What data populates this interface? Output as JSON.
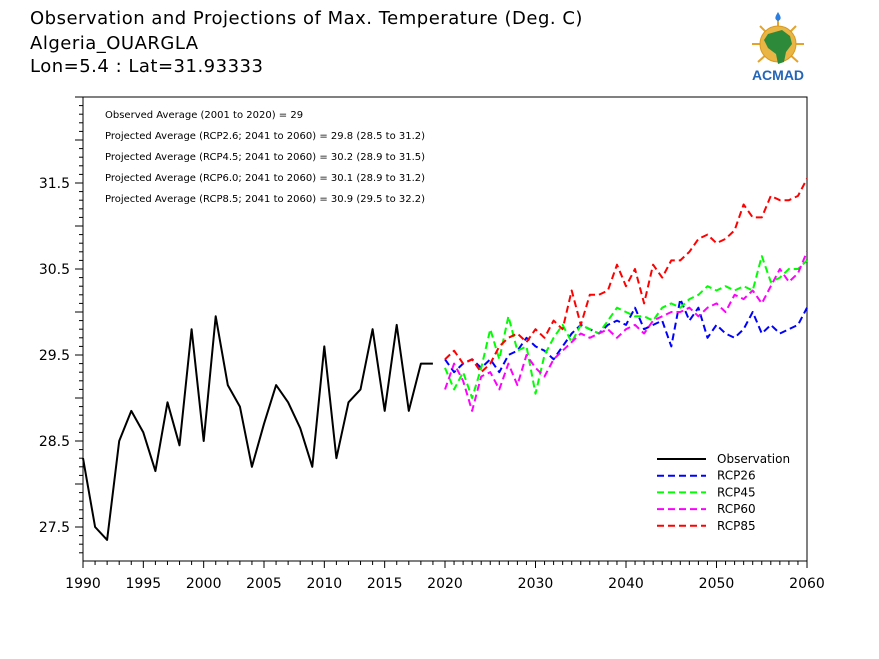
{
  "title": {
    "line1": "Observation and Projections of Max. Temperature (Deg. C)",
    "line2": "Algeria_OUARGLA",
    "line3": "Lon=5.4 : Lat=31.93333"
  },
  "logo": {
    "text": "ACMAD",
    "icon": "africa-map-logo"
  },
  "chart_data": {
    "type": "line",
    "title": "Observation and Projections of Max. Temperature (Deg. C)",
    "xlabel": "",
    "ylabel": "",
    "xlim": [
      1990,
      2060
    ],
    "ylim": [
      27.1,
      32.6
    ],
    "grid": false,
    "legend_position": "bottom-right",
    "x_ticks": [
      1990,
      1995,
      2000,
      2005,
      2010,
      2015,
      2020,
      2030,
      2040,
      2050,
      2060
    ],
    "y_ticks": [
      27.5,
      28.5,
      29.5,
      30.5,
      31.5
    ],
    "annotations": [
      "Observed Average (2001 to 2020) = 29",
      "Projected Average (RCP2.6; 2041 to 2060) = 29.8 (28.5 to 31.2)",
      "Projected Average (RCP4.5; 2041 to 2060) = 30.2 (28.9 to 31.5)",
      "Projected Average (RCP6.0; 2041 to 2060) = 30.1 (28.9 to 31.2)",
      "Projected Average (RCP8.5; 2041 to 2060) = 30.9 (29.5 to 32.2)"
    ],
    "series": [
      {
        "name": "Observation",
        "color": "#000000",
        "dash": "solid",
        "x": [
          1990,
          1991,
          1992,
          1993,
          1994,
          1995,
          1996,
          1997,
          1998,
          1999,
          2000,
          2001,
          2002,
          2003,
          2004,
          2005,
          2006,
          2007,
          2008,
          2009,
          2010,
          2011,
          2012,
          2013,
          2014,
          2015,
          2016,
          2017,
          2018,
          2019
        ],
        "values": [
          28.3,
          27.5,
          27.35,
          28.5,
          28.85,
          28.6,
          28.15,
          28.95,
          28.45,
          29.8,
          28.5,
          29.95,
          29.15,
          28.9,
          28.2,
          28.7,
          29.15,
          28.95,
          28.65,
          28.2,
          29.6,
          28.3,
          28.95,
          29.1,
          29.8,
          28.85,
          29.85,
          28.85,
          29.4,
          29.4
        ]
      },
      {
        "name": "RCP26",
        "color": "#0000ff",
        "dash": "dashed",
        "x": [
          2020,
          2021,
          2022,
          2023,
          2024,
          2025,
          2026,
          2027,
          2028,
          2029,
          2030,
          2031,
          2032,
          2033,
          2034,
          2035,
          2036,
          2037,
          2038,
          2039,
          2040,
          2041,
          2042,
          2043,
          2044,
          2045,
          2046,
          2047,
          2048,
          2049,
          2050,
          2051,
          2052,
          2053,
          2054,
          2055,
          2056,
          2057,
          2058,
          2059,
          2060
        ],
        "values": [
          29.45,
          29.3,
          29.4,
          29.45,
          29.35,
          29.45,
          29.3,
          29.5,
          29.55,
          29.7,
          29.6,
          29.55,
          29.45,
          29.6,
          29.75,
          29.85,
          29.8,
          29.75,
          29.85,
          29.9,
          29.85,
          30.05,
          29.8,
          29.85,
          29.9,
          29.6,
          30.15,
          29.9,
          30.05,
          29.7,
          29.85,
          29.75,
          29.7,
          29.8,
          30.0,
          29.75,
          29.85,
          29.75,
          29.8,
          29.85,
          30.05
        ]
      },
      {
        "name": "RCP45",
        "color": "#00ff00",
        "dash": "dashed",
        "x": [
          2020,
          2021,
          2022,
          2023,
          2024,
          2025,
          2026,
          2027,
          2028,
          2029,
          2030,
          2031,
          2032,
          2033,
          2034,
          2035,
          2036,
          2037,
          2038,
          2039,
          2040,
          2041,
          2042,
          2043,
          2044,
          2045,
          2046,
          2047,
          2048,
          2049,
          2050,
          2051,
          2052,
          2053,
          2054,
          2055,
          2056,
          2057,
          2058,
          2059,
          2060
        ],
        "values": [
          29.35,
          29.1,
          29.3,
          29.0,
          29.35,
          29.8,
          29.45,
          29.95,
          29.55,
          29.6,
          29.05,
          29.5,
          29.7,
          29.85,
          29.65,
          29.85,
          29.8,
          29.75,
          29.9,
          30.05,
          30.0,
          29.95,
          29.95,
          29.9,
          30.05,
          30.1,
          30.05,
          30.15,
          30.2,
          30.3,
          30.25,
          30.3,
          30.25,
          30.3,
          30.25,
          30.65,
          30.35,
          30.4,
          30.5,
          30.5,
          30.6
        ]
      },
      {
        "name": "RCP60",
        "color": "#ff00ff",
        "dash": "dashed",
        "x": [
          2020,
          2021,
          2022,
          2023,
          2024,
          2025,
          2026,
          2027,
          2028,
          2029,
          2030,
          2031,
          2032,
          2033,
          2034,
          2035,
          2036,
          2037,
          2038,
          2039,
          2040,
          2041,
          2042,
          2043,
          2044,
          2045,
          2046,
          2047,
          2048,
          2049,
          2050,
          2051,
          2052,
          2053,
          2054,
          2055,
          2056,
          2057,
          2058,
          2059,
          2060
        ],
        "values": [
          29.1,
          29.4,
          29.2,
          28.85,
          29.25,
          29.3,
          29.1,
          29.4,
          29.15,
          29.5,
          29.35,
          29.25,
          29.45,
          29.55,
          29.65,
          29.75,
          29.7,
          29.75,
          29.8,
          29.7,
          29.8,
          29.85,
          29.75,
          29.9,
          29.95,
          30.0,
          30.0,
          30.05,
          29.95,
          30.05,
          30.1,
          30.0,
          30.2,
          30.15,
          30.25,
          30.1,
          30.3,
          30.5,
          30.35,
          30.45,
          30.7
        ]
      },
      {
        "name": "RCP85",
        "color": "#ff0000",
        "dash": "dashed",
        "x": [
          2020,
          2021,
          2022,
          2023,
          2024,
          2025,
          2026,
          2027,
          2028,
          2029,
          2030,
          2031,
          2032,
          2033,
          2034,
          2035,
          2036,
          2037,
          2038,
          2039,
          2040,
          2041,
          2042,
          2043,
          2044,
          2045,
          2046,
          2047,
          2048,
          2049,
          2050,
          2051,
          2052,
          2053,
          2054,
          2055,
          2056,
          2057,
          2058,
          2059,
          2060
        ],
        "values": [
          29.45,
          29.55,
          29.4,
          29.45,
          29.3,
          29.4,
          29.6,
          29.7,
          29.75,
          29.65,
          29.8,
          29.7,
          29.9,
          29.8,
          30.25,
          29.85,
          30.2,
          30.2,
          30.25,
          30.55,
          30.3,
          30.5,
          30.1,
          30.55,
          30.4,
          30.6,
          30.6,
          30.7,
          30.85,
          30.9,
          30.8,
          30.85,
          30.95,
          31.25,
          31.1,
          31.1,
          31.35,
          31.3,
          31.3,
          31.35,
          31.55
        ]
      }
    ]
  }
}
